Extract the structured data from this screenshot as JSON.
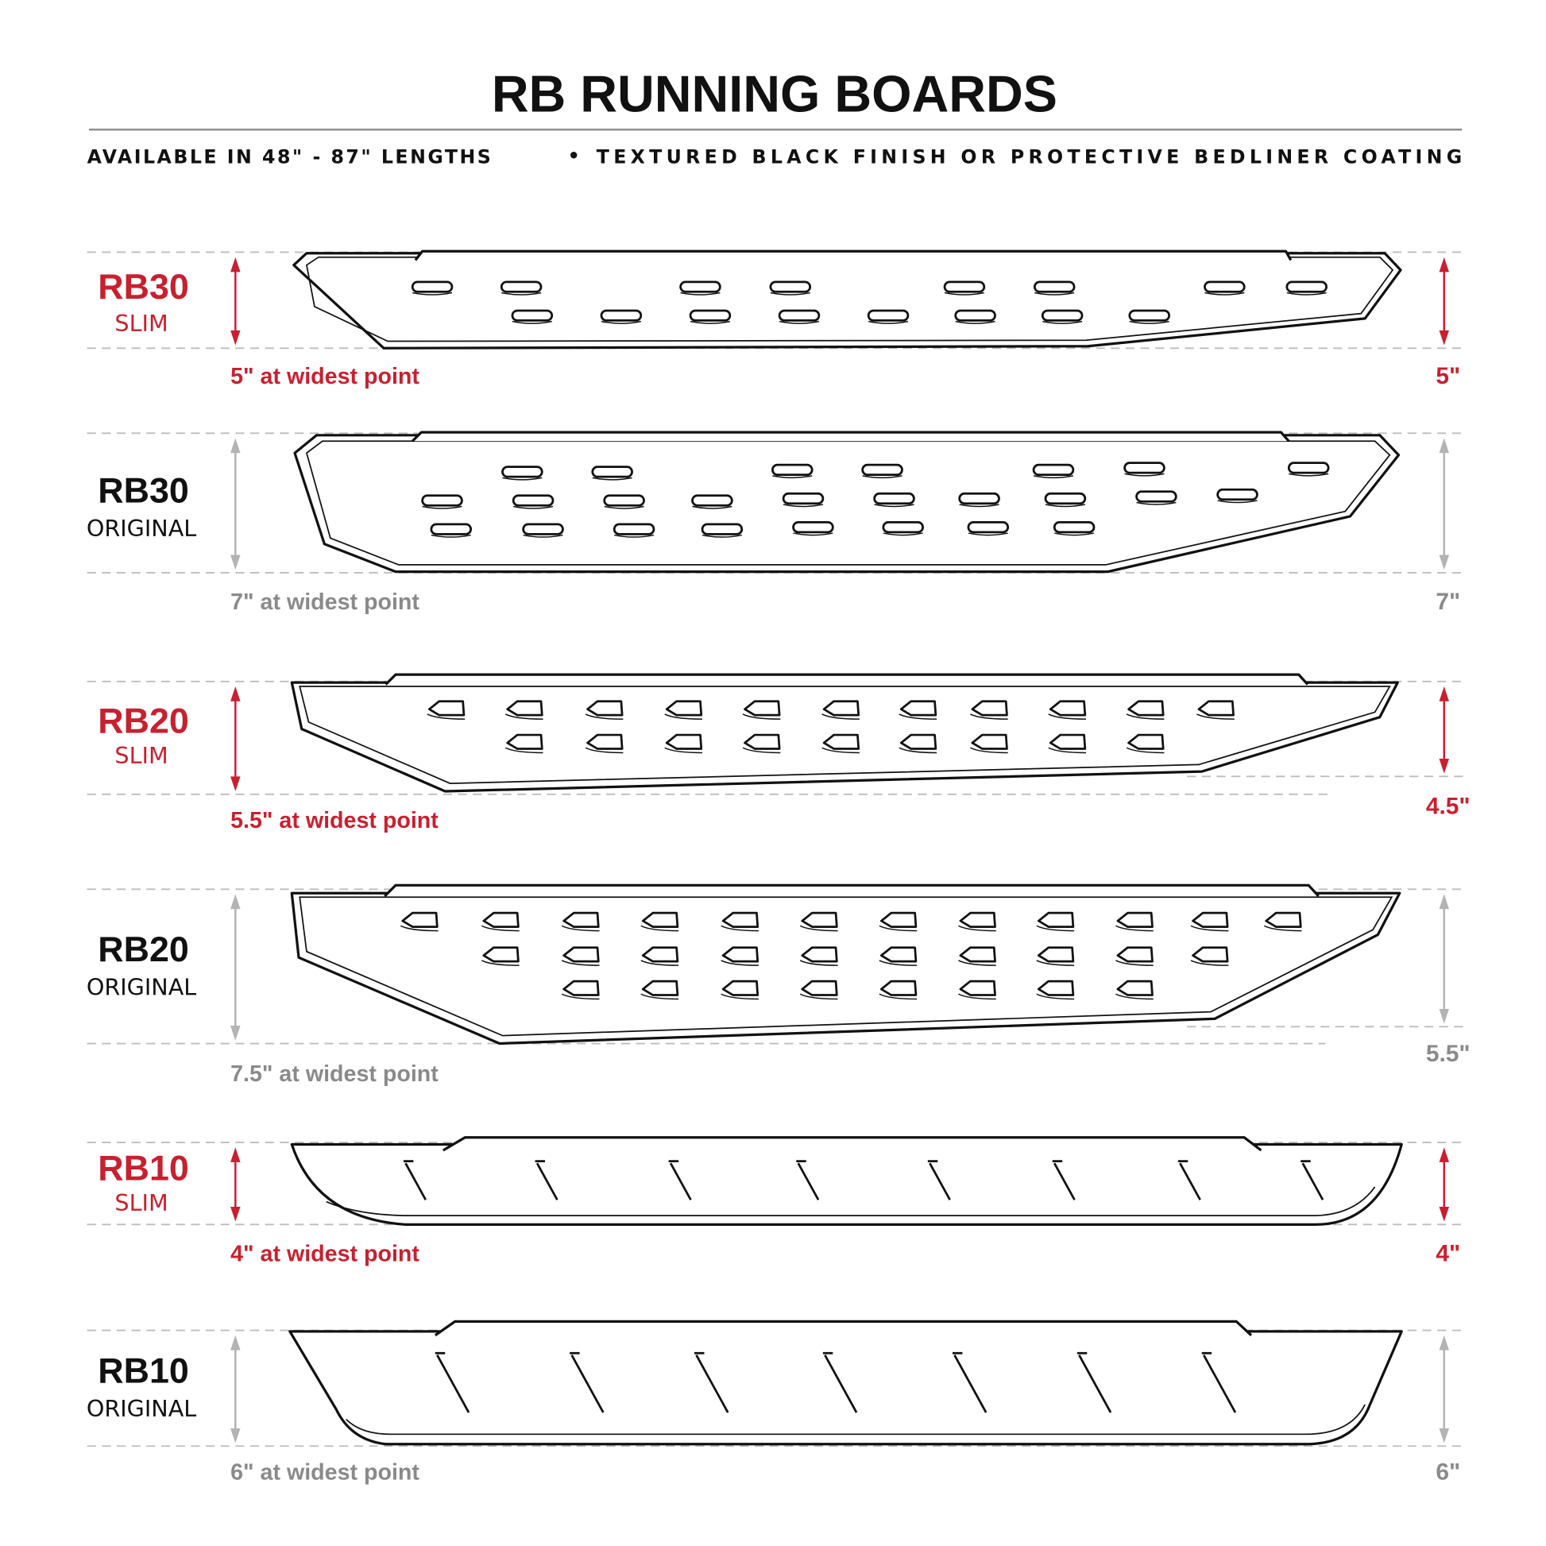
{
  "header": {
    "title": "RB RUNNING BOARDS",
    "subtitle_left": "AVAILABLE IN 48\" - 87\" LENGTHS",
    "subtitle_sep": "•",
    "subtitle_right": "TEXTURED BLACK FINISH OR PROTECTIVE BEDLINER COATING"
  },
  "colors": {
    "accent": "#c8202f",
    "muted": "#8a8a8a",
    "text": "#111111",
    "arrow_muted": "#b3b3b3"
  },
  "rows": [
    {
      "model": "RB30",
      "variant": "SLIM",
      "caption": "5\" at widest point",
      "right_dim": "5\"",
      "highlight": true
    },
    {
      "model": "RB30",
      "variant": "ORIGINAL",
      "caption": "7\" at widest point",
      "right_dim": "7\"",
      "highlight": false
    },
    {
      "model": "RB20",
      "variant": "SLIM",
      "caption": "5.5\" at widest point",
      "right_dim": "4.5\"",
      "highlight": true
    },
    {
      "model": "RB20",
      "variant": "ORIGINAL",
      "caption": "7.5\" at widest point",
      "right_dim": "5.5\"",
      "highlight": false
    },
    {
      "model": "RB10",
      "variant": "SLIM",
      "caption": "4\" at widest point",
      "right_dim": "4\"",
      "highlight": true
    },
    {
      "model": "RB10",
      "variant": "ORIGINAL",
      "caption": "6\" at widest point",
      "right_dim": "6\"",
      "highlight": false
    }
  ]
}
